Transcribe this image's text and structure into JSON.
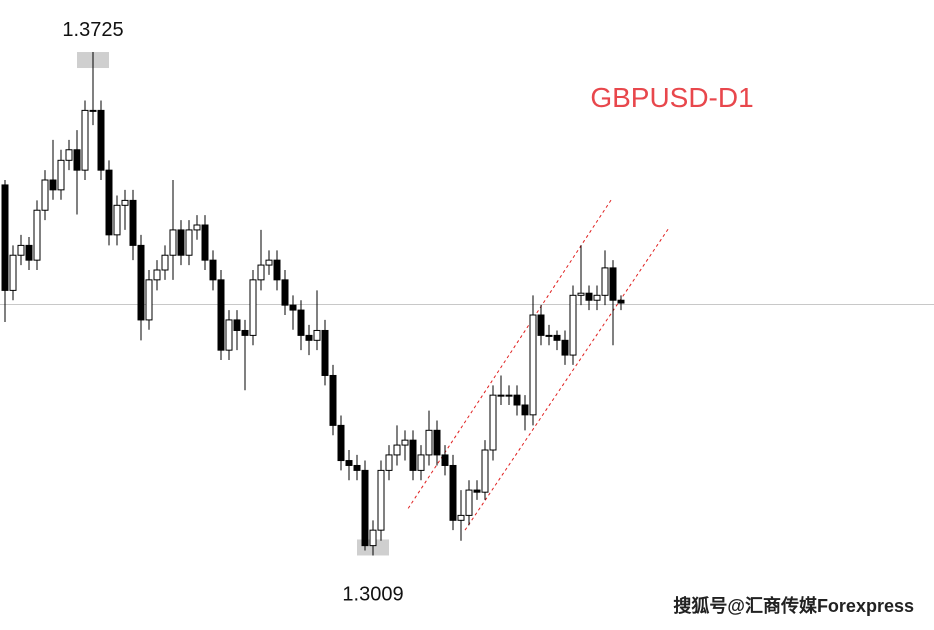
{
  "chart_data": {
    "type": "candlestick",
    "title": "GBPUSD-D1",
    "watermark": "搜狐号@汇商传媒Forexpress",
    "open": [
      1.3536,
      1.3386,
      1.3436,
      1.345,
      1.3429,
      1.35,
      1.3543,
      1.3529,
      1.3571,
      1.3586,
      1.3557,
      1.3642,
      1.3642,
      1.3557,
      1.3465,
      1.3507,
      1.3514,
      1.345,
      1.3344,
      1.3401,
      1.3415,
      1.3436,
      1.3472,
      1.3436,
      1.3472,
      1.3479,
      1.3429,
      1.3401,
      1.3301,
      1.3344,
      1.3329,
      1.3322,
      1.3401,
      1.3422,
      1.3429,
      1.3401,
      1.3365,
      1.3358,
      1.3322,
      1.3315,
      1.3329,
      1.3265,
      1.3194,
      1.3144,
      1.3137,
      1.313,
      1.3023,
      1.3045,
      1.313,
      1.3152,
      1.3166,
      1.3173,
      1.313,
      1.3152,
      1.3187,
      1.3152,
      1.3137,
      1.3059,
      1.3066,
      1.3102,
      1.3099,
      1.3159,
      1.3237,
      1.3237,
      1.3237,
      1.3223,
      1.3209,
      1.3351,
      1.3322,
      1.3322,
      1.3315,
      1.3294,
      1.3379,
      1.3382,
      1.3372,
      1.3379,
      1.3418,
      1.3372
    ],
    "high": [
      1.3543,
      1.345,
      1.3465,
      1.3462,
      1.3514,
      1.3557,
      1.36,
      1.3586,
      1.36,
      1.3614,
      1.3656,
      1.3725,
      1.3656,
      1.3571,
      1.3521,
      1.3529,
      1.3529,
      1.3465,
      1.3415,
      1.3429,
      1.345,
      1.3543,
      1.3486,
      1.3486,
      1.3493,
      1.3493,
      1.3443,
      1.3415,
      1.3358,
      1.3358,
      1.3344,
      1.3415,
      1.3472,
      1.3443,
      1.3443,
      1.3415,
      1.3379,
      1.3372,
      1.3337,
      1.3386,
      1.3344,
      1.328,
      1.3208,
      1.3159,
      1.3152,
      1.3144,
      1.3059,
      1.3144,
      1.3166,
      1.3194,
      1.3187,
      1.3187,
      1.3166,
      1.3215,
      1.3201,
      1.3166,
      1.3152,
      1.3102,
      1.3116,
      1.3116,
      1.3173,
      1.3251,
      1.3265,
      1.3251,
      1.3251,
      1.3237,
      1.3379,
      1.3365,
      1.3337,
      1.3329,
      1.3329,
      1.3393,
      1.345,
      1.3393,
      1.3393,
      1.3443,
      1.3429,
      1.3379
    ],
    "low": [
      1.3341,
      1.3372,
      1.3422,
      1.3415,
      1.3415,
      1.3486,
      1.3515,
      1.3515,
      1.3557,
      1.3494,
      1.3543,
      1.3621,
      1.3543,
      1.345,
      1.345,
      1.3472,
      1.3429,
      1.3315,
      1.333,
      1.3386,
      1.3401,
      1.3401,
      1.3422,
      1.3422,
      1.3458,
      1.3415,
      1.3386,
      1.3287,
      1.3287,
      1.3301,
      1.3244,
      1.3308,
      1.3386,
      1.3408,
      1.3386,
      1.3351,
      1.333,
      1.3301,
      1.3294,
      1.3301,
      1.3251,
      1.318,
      1.313,
      1.3116,
      1.3116,
      1.3016,
      1.3009,
      1.303,
      1.3116,
      1.3137,
      1.3144,
      1.3116,
      1.3116,
      1.3137,
      1.3137,
      1.3123,
      1.3045,
      1.303,
      1.3052,
      1.3088,
      1.3088,
      1.3144,
      1.3223,
      1.3223,
      1.3208,
      1.3187,
      1.3194,
      1.3308,
      1.3308,
      1.3301,
      1.328,
      1.328,
      1.3365,
      1.3358,
      1.3358,
      1.3365,
      1.3308,
      1.3358
    ],
    "close": [
      1.3386,
      1.3436,
      1.345,
      1.3429,
      1.35,
      1.3543,
      1.3529,
      1.3571,
      1.3586,
      1.3557,
      1.3642,
      1.3642,
      1.3557,
      1.3465,
      1.3507,
      1.3514,
      1.345,
      1.3344,
      1.3401,
      1.3415,
      1.3436,
      1.3472,
      1.3436,
      1.3472,
      1.3479,
      1.3429,
      1.3401,
      1.3301,
      1.3344,
      1.3329,
      1.3322,
      1.3401,
      1.3422,
      1.3429,
      1.3401,
      1.3365,
      1.3358,
      1.3322,
      1.3315,
      1.3329,
      1.3265,
      1.3194,
      1.3144,
      1.3137,
      1.313,
      1.3023,
      1.3045,
      1.313,
      1.3152,
      1.3166,
      1.3173,
      1.313,
      1.3152,
      1.3187,
      1.3152,
      1.3137,
      1.3059,
      1.3066,
      1.3102,
      1.3099,
      1.3159,
      1.3237,
      1.3237,
      1.3237,
      1.3223,
      1.3209,
      1.3351,
      1.3322,
      1.3322,
      1.3315,
      1.3294,
      1.3379,
      1.3382,
      1.3372,
      1.3379,
      1.3418,
      1.3372,
      1.3368
    ],
    "high_label": 1.3725,
    "low_label": 1.3009,
    "price_line": 1.3366,
    "trendlines": [
      {
        "x": [
          50.4,
          75.9
        ],
        "y": [
          1.3076,
          1.3517
        ]
      },
      {
        "x": [
          57.5,
          83
        ],
        "y": [
          1.3045,
          1.3475
        ]
      }
    ],
    "trendline_color": "#e02020",
    "xlim": [
      -0.625,
      116.125
    ],
    "ylim": [
      1.2903,
      1.3799
    ]
  }
}
